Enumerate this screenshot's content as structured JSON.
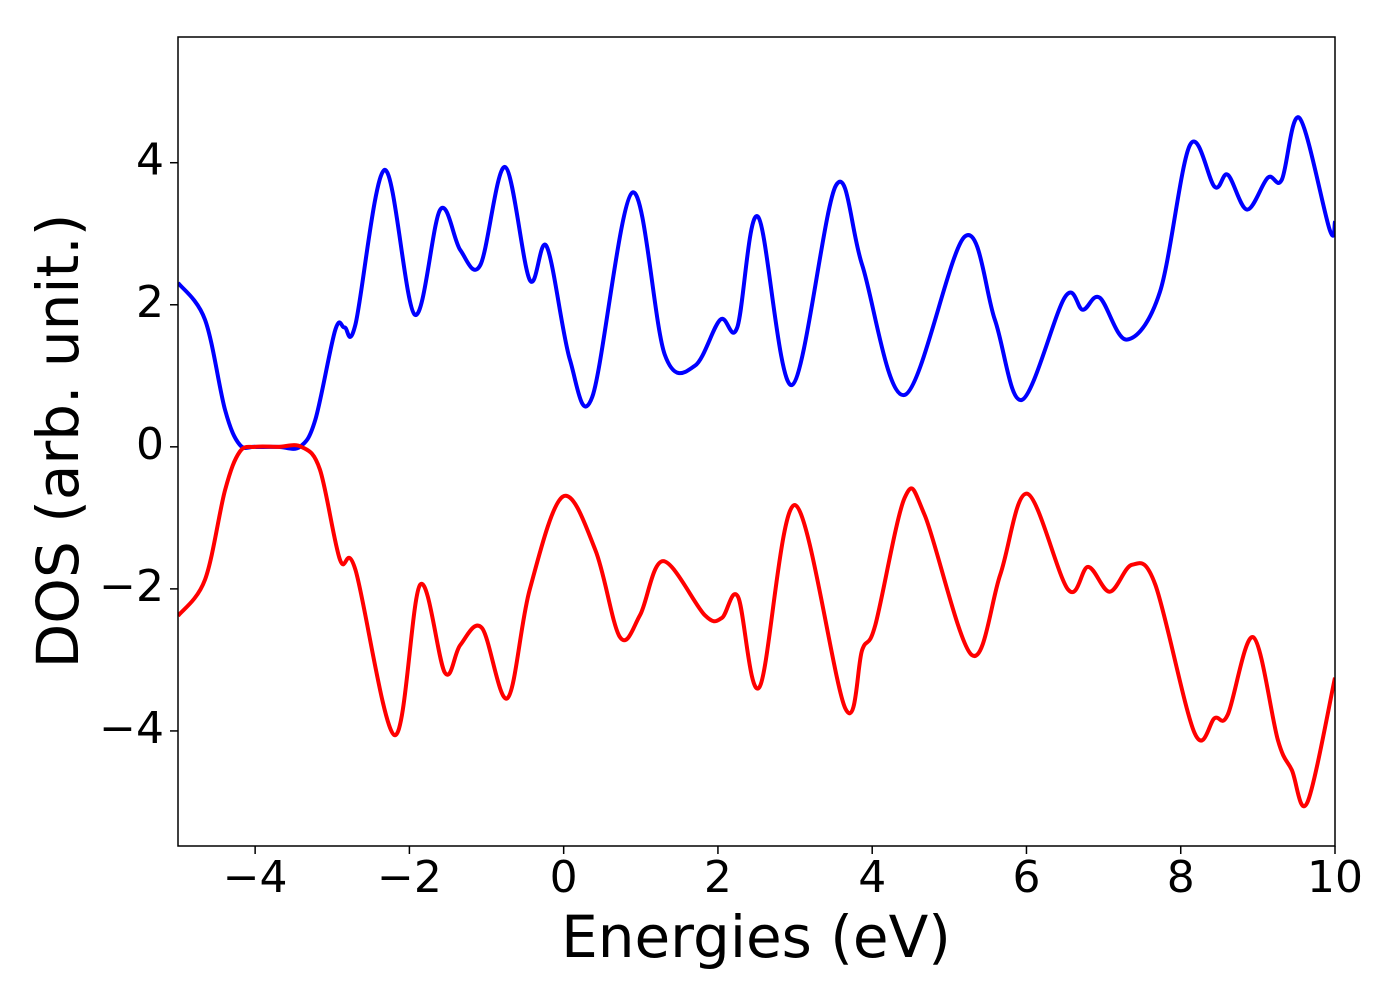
{
  "chart_data": {
    "type": "line",
    "xlabel": "Energies (eV)",
    "ylabel": "DOS (arb. unit.)",
    "xlim": [
      -5,
      10
    ],
    "xticks": [
      {
        "value": -4,
        "label": "−4"
      },
      {
        "value": -2,
        "label": "−2"
      },
      0,
      2,
      4,
      6,
      8,
      10
    ],
    "ylim": [
      -5.62,
      5.77
    ],
    "yticks": [
      {
        "value": -4,
        "label": "−4"
      },
      {
        "value": -2,
        "label": "−2"
      },
      0,
      2,
      4
    ],
    "series": [
      {
        "color": "#0000ff",
        "x": [
          -5,
          -4.65,
          -4.39,
          -4.2,
          -4,
          -3.7,
          -3.42,
          -3.22,
          -2.96,
          -2.84,
          -2.7,
          -2.32,
          -1.93,
          -1.6,
          -1.34,
          -1.08,
          -0.76,
          -0.44,
          -0.22,
          0.08,
          0.37,
          0.89,
          1.31,
          1.7,
          2.03,
          2.25,
          2.52,
          2.96,
          3.53,
          3.87,
          4.42,
          5.2,
          5.59,
          5.94,
          6.5,
          6.73,
          6.95,
          7.3,
          7.73,
          8.12,
          8.44,
          8.61,
          8.86,
          9.13,
          9.31,
          9.54,
          9.93,
          10
        ],
        "values": [
          2.31,
          1.79,
          0.52,
          0.03,
          0,
          0,
          0,
          0.38,
          1.65,
          1.68,
          1.72,
          3.9,
          1.86,
          3.34,
          2.77,
          2.56,
          3.94,
          2.35,
          2.82,
          1.23,
          0.7,
          3.58,
          1.3,
          1.14,
          1.79,
          1.68,
          3.24,
          0.87,
          3.68,
          2.56,
          0.73,
          2.96,
          1.79,
          0.66,
          2.11,
          1.93,
          2.1,
          1.51,
          2.18,
          4.25,
          3.66,
          3.83,
          3.34,
          3.79,
          3.76,
          4.63,
          3.06,
          3.17
        ]
      },
      {
        "color": "#ff0000",
        "x": [
          -5,
          -4.65,
          -4.39,
          -4.2,
          -4,
          -3.7,
          -3.4,
          -3.16,
          -2.9,
          -2.7,
          -2.19,
          -1.86,
          -1.54,
          -1.34,
          -1.06,
          -0.73,
          -0.44,
          -0.01,
          0.41,
          0.73,
          0.99,
          1.29,
          1.83,
          2.05,
          2.26,
          2.54,
          3.0,
          3.65,
          3.87,
          4.04,
          4.42,
          4.68,
          5.29,
          5.66,
          6.01,
          6.54,
          6.8,
          7.08,
          7.37,
          7.67,
          8.18,
          8.44,
          8.61,
          8.94,
          9.26,
          9.44,
          9.64,
          10
        ],
        "values": [
          -2.38,
          -1.87,
          -0.61,
          -0.07,
          0,
          0,
          0,
          -0.32,
          -1.59,
          -1.73,
          -4.06,
          -1.94,
          -3.18,
          -2.79,
          -2.55,
          -3.54,
          -2.01,
          -0.7,
          -1.45,
          -2.68,
          -2.37,
          -1.61,
          -2.37,
          -2.41,
          -2.11,
          -3.38,
          -0.82,
          -3.68,
          -2.86,
          -2.51,
          -0.72,
          -0.96,
          -2.93,
          -1.8,
          -0.66,
          -2.01,
          -1.69,
          -2.04,
          -1.66,
          -1.94,
          -4.03,
          -3.82,
          -3.77,
          -2.68,
          -4.13,
          -4.55,
          -5.01,
          -3.25
        ]
      }
    ]
  }
}
